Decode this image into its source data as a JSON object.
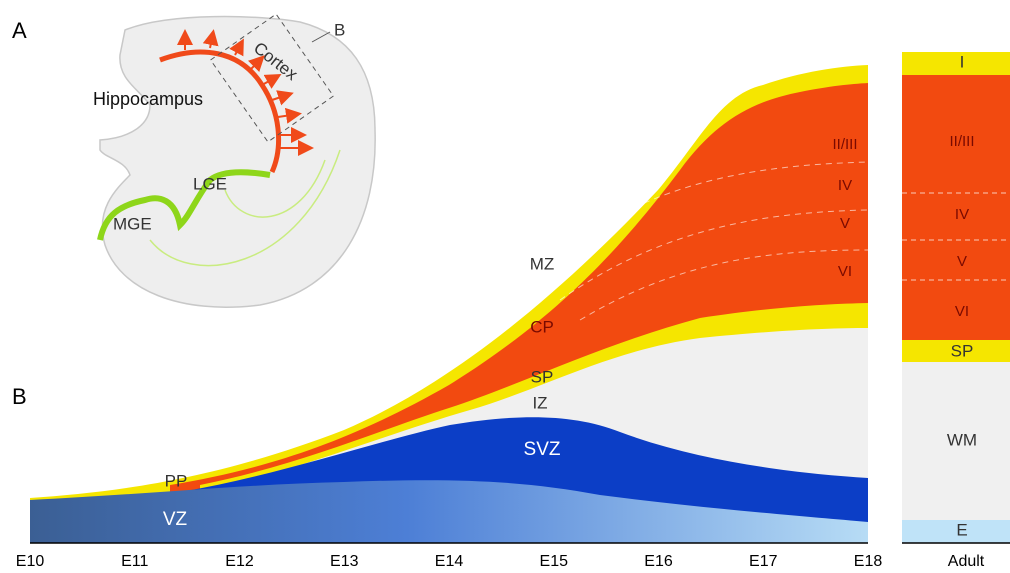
{
  "panel_a": {
    "label": "A",
    "box_label": "B",
    "cortex": "Cortex",
    "hippocampus": "Hippocampus",
    "lge": "LGE",
    "mge": "MGE"
  },
  "panel_b": {
    "label": "B",
    "timeline": [
      "E10",
      "E11",
      "E12",
      "E13",
      "E14",
      "E15",
      "E16",
      "E17",
      "E18"
    ],
    "adult_label": "Adult",
    "zones": {
      "mz": "MZ",
      "cp": "CP",
      "sp": "SP",
      "iz": "IZ",
      "svz": "SVZ",
      "vz": "VZ",
      "pp": "PP"
    },
    "e18_layers": [
      "II/III",
      "IV",
      "V",
      "VI"
    ],
    "adult_layers": [
      "I",
      "II/III",
      "IV",
      "V",
      "VI",
      "SP",
      "WM",
      "E"
    ]
  }
}
